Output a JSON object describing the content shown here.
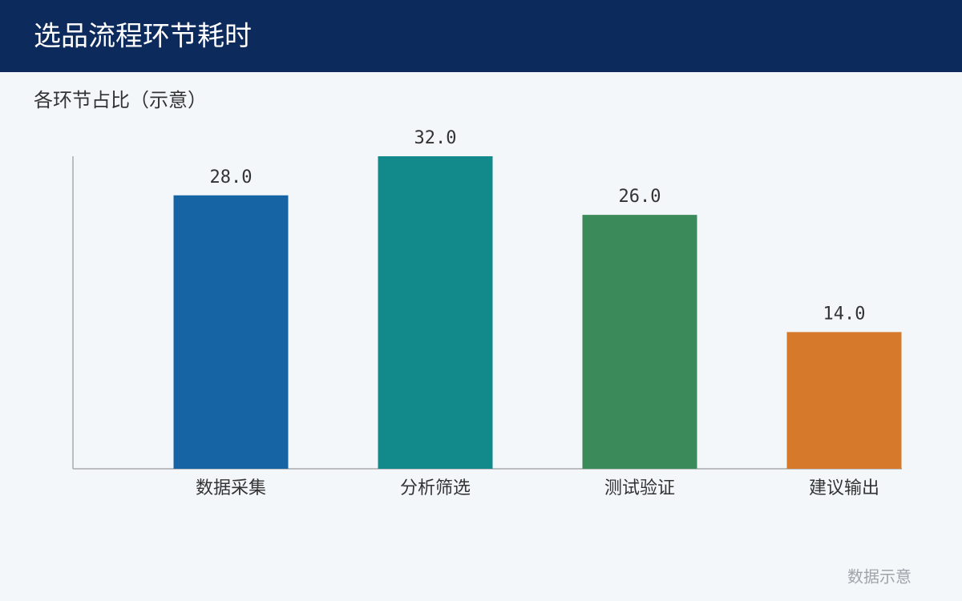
{
  "chart_data": {
    "type": "bar",
    "title": "选品流程环节耗时",
    "subtitle": "各环节占比（示意）",
    "categories": [
      "数据采集",
      "分析筛选",
      "测试验证",
      "建议输出"
    ],
    "values": [
      28,
      32,
      26,
      14
    ],
    "value_labels": [
      "28.0",
      "32.0",
      "26.0",
      "14.0"
    ],
    "colors": [
      "#1764a5",
      "#128a8c",
      "#3b8b5a",
      "#d6792a"
    ],
    "ylim": [
      0,
      32
    ],
    "note": "数据示意"
  }
}
